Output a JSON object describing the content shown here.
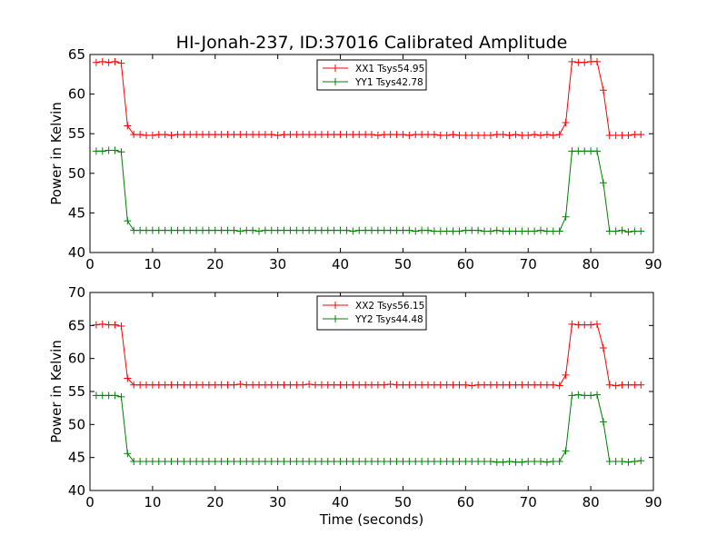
{
  "figure": {
    "title": "HI-Jonah-237, ID:37016 Calibrated Amplitude"
  },
  "chart_data": [
    {
      "type": "line",
      "title": "HI-Jonah-237, ID:37016 Calibrated Amplitude",
      "xlabel": "",
      "ylabel": "Power in Kelvin",
      "xlim": [
        0,
        90
      ],
      "ylim": [
        40,
        65
      ],
      "xticks": [
        0,
        10,
        20,
        30,
        40,
        50,
        60,
        70,
        80,
        90
      ],
      "yticks": [
        40,
        45,
        50,
        55,
        60,
        65
      ],
      "grid": false,
      "legend_position": "top-center",
      "series": [
        {
          "name": "XX1 Tsys54.95",
          "color": "#ff0000",
          "x": [
            1,
            2,
            3,
            4,
            5,
            6,
            7,
            8,
            9,
            10,
            11,
            12,
            13,
            14,
            15,
            16,
            17,
            18,
            19,
            20,
            21,
            22,
            23,
            24,
            25,
            26,
            27,
            28,
            29,
            30,
            31,
            32,
            33,
            34,
            35,
            36,
            37,
            38,
            39,
            40,
            41,
            42,
            43,
            44,
            45,
            46,
            47,
            48,
            49,
            50,
            51,
            52,
            53,
            54,
            55,
            56,
            57,
            58,
            59,
            60,
            61,
            62,
            63,
            64,
            65,
            66,
            67,
            68,
            69,
            70,
            71,
            72,
            73,
            74,
            75,
            76,
            77,
            78,
            79,
            80,
            81,
            82,
            83,
            84,
            85,
            86,
            87,
            88
          ],
          "y": [
            64.0,
            64.1,
            64.0,
            64.1,
            63.9,
            56.0,
            54.9,
            54.9,
            54.8,
            54.8,
            54.9,
            54.9,
            54.8,
            54.9,
            54.9,
            54.9,
            54.9,
            54.9,
            54.9,
            54.9,
            54.9,
            54.9,
            54.9,
            54.9,
            54.9,
            54.9,
            54.9,
            54.9,
            54.9,
            54.8,
            54.9,
            54.9,
            54.9,
            54.9,
            54.9,
            54.9,
            54.9,
            54.9,
            54.9,
            54.9,
            54.9,
            54.9,
            54.9,
            54.9,
            54.9,
            54.8,
            54.9,
            54.9,
            54.9,
            54.9,
            54.8,
            54.9,
            54.9,
            54.9,
            54.9,
            54.8,
            54.8,
            54.9,
            54.8,
            54.8,
            54.8,
            54.8,
            54.8,
            54.8,
            54.9,
            54.9,
            54.8,
            54.9,
            54.8,
            54.8,
            54.9,
            54.8,
            54.9,
            54.8,
            54.9,
            56.4,
            64.1,
            64.0,
            64.0,
            64.1,
            64.1,
            60.5,
            54.8,
            54.8,
            54.8,
            54.8,
            54.9,
            54.9
          ]
        },
        {
          "name": "YY1 Tsys42.78",
          "color": "#008000",
          "x": [
            1,
            2,
            3,
            4,
            5,
            6,
            7,
            8,
            9,
            10,
            11,
            12,
            13,
            14,
            15,
            16,
            17,
            18,
            19,
            20,
            21,
            22,
            23,
            24,
            25,
            26,
            27,
            28,
            29,
            30,
            31,
            32,
            33,
            34,
            35,
            36,
            37,
            38,
            39,
            40,
            41,
            42,
            43,
            44,
            45,
            46,
            47,
            48,
            49,
            50,
            51,
            52,
            53,
            54,
            55,
            56,
            57,
            58,
            59,
            60,
            61,
            62,
            63,
            64,
            65,
            66,
            67,
            68,
            69,
            70,
            71,
            72,
            73,
            74,
            75,
            76,
            77,
            78,
            79,
            80,
            81,
            82,
            83,
            84,
            85,
            86,
            87,
            88
          ],
          "y": [
            52.8,
            52.8,
            52.9,
            52.9,
            52.7,
            44.0,
            42.8,
            42.8,
            42.8,
            42.8,
            42.8,
            42.8,
            42.8,
            42.8,
            42.8,
            42.8,
            42.8,
            42.8,
            42.8,
            42.8,
            42.8,
            42.8,
            42.8,
            42.7,
            42.8,
            42.8,
            42.7,
            42.8,
            42.8,
            42.8,
            42.8,
            42.8,
            42.8,
            42.8,
            42.8,
            42.8,
            42.8,
            42.8,
            42.8,
            42.8,
            42.8,
            42.7,
            42.8,
            42.8,
            42.8,
            42.8,
            42.8,
            42.8,
            42.8,
            42.8,
            42.8,
            42.7,
            42.8,
            42.8,
            42.7,
            42.7,
            42.7,
            42.7,
            42.7,
            42.8,
            42.8,
            42.8,
            42.7,
            42.7,
            42.8,
            42.7,
            42.7,
            42.7,
            42.7,
            42.7,
            42.7,
            42.8,
            42.7,
            42.7,
            42.7,
            44.5,
            52.8,
            52.8,
            52.8,
            52.8,
            52.8,
            48.8,
            42.7,
            42.7,
            42.8,
            42.6,
            42.7,
            42.7
          ]
        }
      ]
    },
    {
      "type": "line",
      "title": "",
      "xlabel": "Time (seconds)",
      "ylabel": "Power in Kelvin",
      "xlim": [
        0,
        90
      ],
      "ylim": [
        40,
        70
      ],
      "xticks": [
        0,
        10,
        20,
        30,
        40,
        50,
        60,
        70,
        80,
        90
      ],
      "yticks": [
        40,
        45,
        50,
        55,
        60,
        65,
        70
      ],
      "grid": false,
      "legend_position": "top-center",
      "series": [
        {
          "name": "XX2 Tsys56.15",
          "color": "#ff0000",
          "x": [
            1,
            2,
            3,
            4,
            5,
            6,
            7,
            8,
            9,
            10,
            11,
            12,
            13,
            14,
            15,
            16,
            17,
            18,
            19,
            20,
            21,
            22,
            23,
            24,
            25,
            26,
            27,
            28,
            29,
            30,
            31,
            32,
            33,
            34,
            35,
            36,
            37,
            38,
            39,
            40,
            41,
            42,
            43,
            44,
            45,
            46,
            47,
            48,
            49,
            50,
            51,
            52,
            53,
            54,
            55,
            56,
            57,
            58,
            59,
            60,
            61,
            62,
            63,
            64,
            65,
            66,
            67,
            68,
            69,
            70,
            71,
            72,
            73,
            74,
            75,
            76,
            77,
            78,
            79,
            80,
            81,
            82,
            83,
            84,
            85,
            86,
            87,
            88
          ],
          "y": [
            65.1,
            65.2,
            65.1,
            65.1,
            64.9,
            57.0,
            56.0,
            56.0,
            56.0,
            56.0,
            56.0,
            56.0,
            56.0,
            56.0,
            56.0,
            56.0,
            56.0,
            56.0,
            56.0,
            56.0,
            56.0,
            56.0,
            56.0,
            56.1,
            56.0,
            56.0,
            56.0,
            56.0,
            56.0,
            56.0,
            56.0,
            56.0,
            56.0,
            56.0,
            56.1,
            56.0,
            56.0,
            56.0,
            56.0,
            56.0,
            56.0,
            56.0,
            56.0,
            56.0,
            56.0,
            56.0,
            56.0,
            56.1,
            56.0,
            56.0,
            56.0,
            56.0,
            56.0,
            56.0,
            56.0,
            56.0,
            56.0,
            56.0,
            56.0,
            56.0,
            55.9,
            56.0,
            56.0,
            56.0,
            56.0,
            56.0,
            56.0,
            56.0,
            56.0,
            56.0,
            56.0,
            56.0,
            56.0,
            56.0,
            55.9,
            57.5,
            65.2,
            65.1,
            65.1,
            65.1,
            65.2,
            61.6,
            56.0,
            55.9,
            56.0,
            56.0,
            56.0,
            56.0
          ]
        },
        {
          "name": "YY2 Tsys44.48",
          "color": "#008000",
          "x": [
            1,
            2,
            3,
            4,
            5,
            6,
            7,
            8,
            9,
            10,
            11,
            12,
            13,
            14,
            15,
            16,
            17,
            18,
            19,
            20,
            21,
            22,
            23,
            24,
            25,
            26,
            27,
            28,
            29,
            30,
            31,
            32,
            33,
            34,
            35,
            36,
            37,
            38,
            39,
            40,
            41,
            42,
            43,
            44,
            45,
            46,
            47,
            48,
            49,
            50,
            51,
            52,
            53,
            54,
            55,
            56,
            57,
            58,
            59,
            60,
            61,
            62,
            63,
            64,
            65,
            66,
            67,
            68,
            69,
            70,
            71,
            72,
            73,
            74,
            75,
            76,
            77,
            78,
            79,
            80,
            81,
            82,
            83,
            84,
            85,
            86,
            87,
            88
          ],
          "y": [
            54.4,
            54.4,
            54.4,
            54.4,
            54.2,
            45.6,
            44.4,
            44.4,
            44.4,
            44.4,
            44.4,
            44.4,
            44.4,
            44.4,
            44.4,
            44.4,
            44.4,
            44.4,
            44.4,
            44.4,
            44.4,
            44.4,
            44.4,
            44.4,
            44.4,
            44.4,
            44.4,
            44.4,
            44.4,
            44.4,
            44.4,
            44.4,
            44.4,
            44.4,
            44.4,
            44.4,
            44.4,
            44.4,
            44.4,
            44.4,
            44.4,
            44.4,
            44.4,
            44.4,
            44.4,
            44.4,
            44.4,
            44.4,
            44.4,
            44.4,
            44.4,
            44.4,
            44.4,
            44.4,
            44.4,
            44.4,
            44.4,
            44.4,
            44.4,
            44.4,
            44.4,
            44.4,
            44.4,
            44.4,
            44.3,
            44.3,
            44.4,
            44.3,
            44.3,
            44.4,
            44.4,
            44.4,
            44.3,
            44.4,
            44.4,
            46.0,
            54.4,
            54.5,
            54.4,
            54.4,
            54.5,
            50.4,
            44.4,
            44.4,
            44.4,
            44.3,
            44.4,
            44.5
          ]
        }
      ]
    }
  ]
}
